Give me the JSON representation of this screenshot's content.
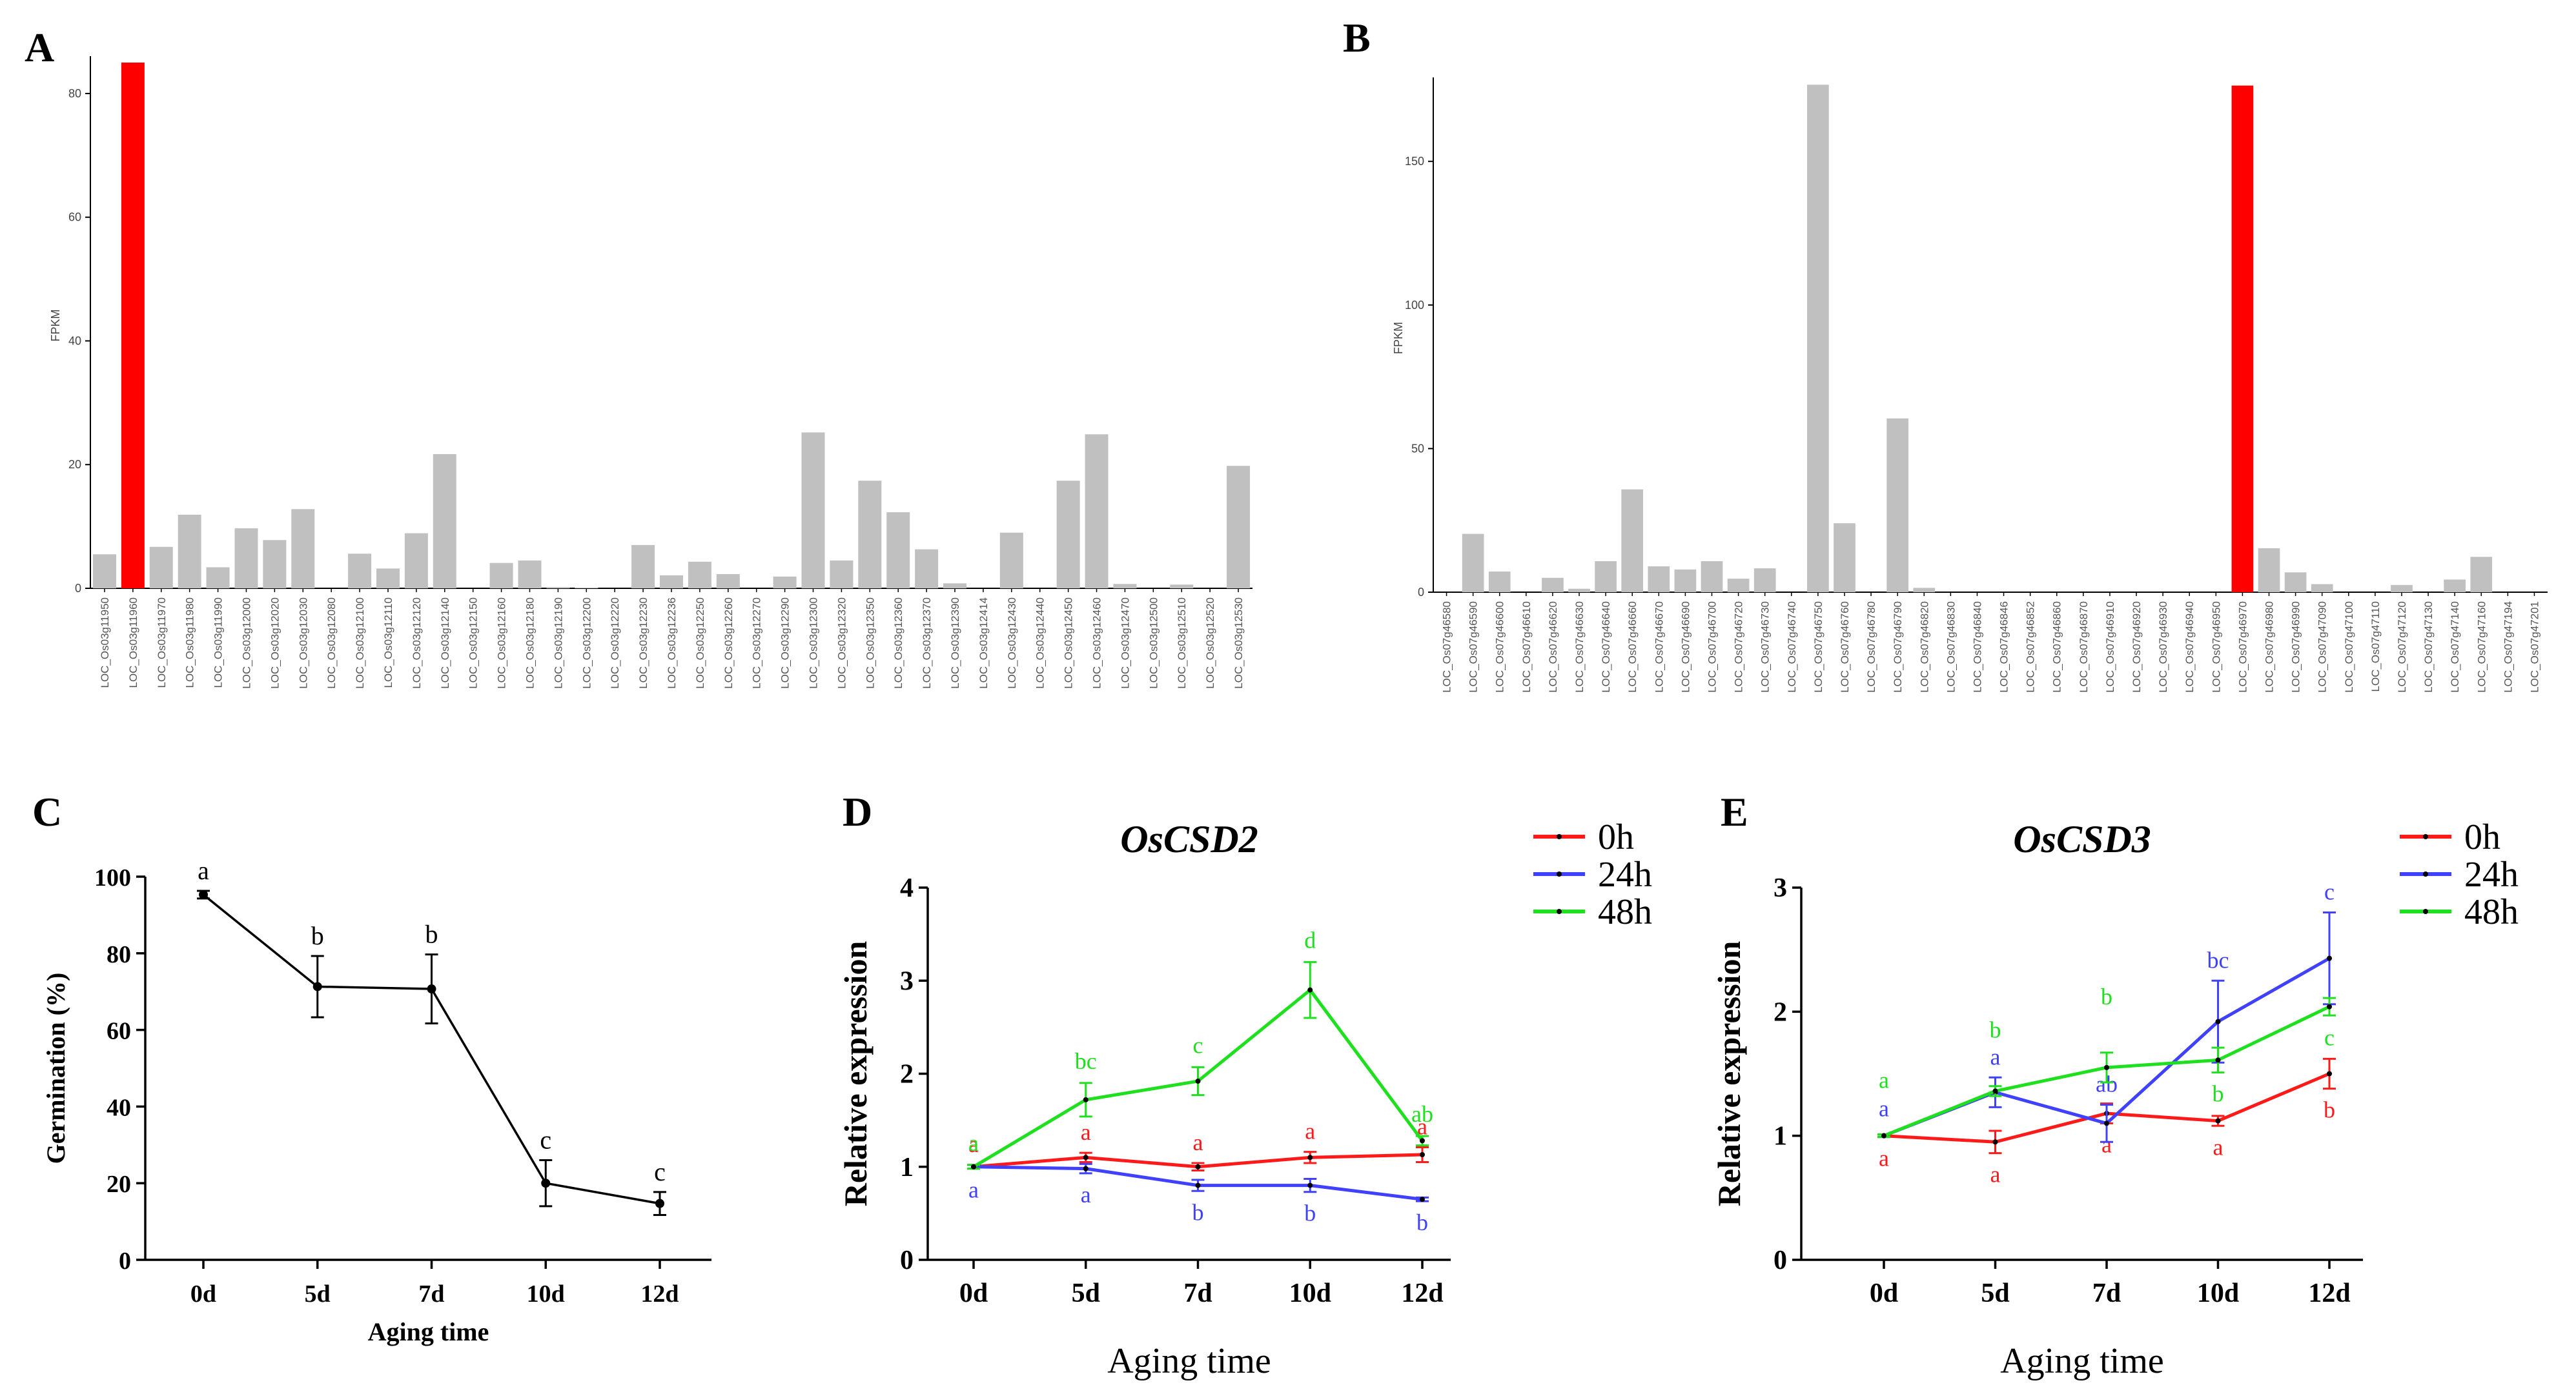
{
  "colors": {
    "highlight": "#ff0000",
    "bar": "#c0c0c0",
    "s0h": "#ff1a1a",
    "s24h": "#4040ff",
    "s48h": "#1ee01e",
    "axis": "#000000"
  },
  "chart_data": [
    {
      "panel": "A",
      "type": "bar",
      "ylabel": "FPKM",
      "ylim": [
        0,
        85
      ],
      "yticks": [
        0,
        20,
        40,
        60,
        80
      ],
      "highlight_index": 1,
      "categories": [
        "LOC_Os03g11950",
        "LOC_Os03g11960",
        "LOC_Os03g11970",
        "LOC_Os03g11980",
        "LOC_Os03g11990",
        "LOC_Os03g12000",
        "LOC_Os03g12020",
        "LOC_Os03g12030",
        "LOC_Os03g12080",
        "LOC_Os03g12100",
        "LOC_Os03g12110",
        "LOC_Os03g12120",
        "LOC_Os03g12140",
        "LOC_Os03g12150",
        "LOC_Os03g12160",
        "LOC_Os03g12180",
        "LOC_Os03g12190",
        "LOC_Os03g12200",
        "LOC_Os03g12220",
        "LOC_Os03g12230",
        "LOC_Os03g12236",
        "LOC_Os03g12250",
        "LOC_Os03g12260",
        "LOC_Os03g12270",
        "LOC_Os03g12290",
        "LOC_Os03g12300",
        "LOC_Os03g12320",
        "LOC_Os03g12350",
        "LOC_Os03g12360",
        "LOC_Os03g12370",
        "LOC_Os03g12390",
        "LOC_Os03g12414",
        "LOC_Os03g12430",
        "LOC_Os03g12440",
        "LOC_Os03g12450",
        "LOC_Os03g12460",
        "LOC_Os03g12470",
        "LOC_Os03g12500",
        "LOC_Os03g12510",
        "LOC_Os03g12520",
        "LOC_Os03g12530"
      ],
      "values": [
        5.5,
        85,
        6.7,
        11.9,
        3.4,
        9.7,
        7.8,
        12.8,
        0,
        5.6,
        3.2,
        8.9,
        21.7,
        0,
        4.1,
        4.5,
        0.2,
        0.1,
        0,
        7.0,
        2.1,
        4.3,
        2.3,
        0,
        1.9,
        25.2,
        4.5,
        17.4,
        12.3,
        6.3,
        0.8,
        0,
        9.0,
        0,
        17.4,
        24.9,
        0.7,
        0,
        0.6,
        0,
        19.8
      ]
    },
    {
      "panel": "B",
      "type": "bar",
      "ylabel": "FPKM",
      "ylim": [
        0,
        177
      ],
      "yticks": [
        0,
        50,
        100,
        150
      ],
      "highlight_index": 30,
      "categories": [
        "LOC_Os07g46580",
        "LOC_Os07g46590",
        "LOC_Os07g46600",
        "LOC_Os07g46610",
        "LOC_Os07g46620",
        "LOC_Os07g46630",
        "LOC_Os07g46640",
        "LOC_Os07g46660",
        "LOC_Os07g46670",
        "LOC_Os07g46690",
        "LOC_Os07g46700",
        "LOC_Os07g46720",
        "LOC_Os07g46730",
        "LOC_Os07g46740",
        "LOC_Os07g46750",
        "LOC_Os07g46760",
        "LOC_Os07g46780",
        "LOC_Os07g46790",
        "LOC_Os07g46820",
        "LOC_Os07g46830",
        "LOC_Os07g46840",
        "LOC_Os07g46846",
        "LOC_Os07g46852",
        "LOC_Os07g46860",
        "LOC_Os07g46870",
        "LOC_Os07g46910",
        "LOC_Os07g46920",
        "LOC_Os07g46930",
        "LOC_Os07g46940",
        "LOC_Os07g46950",
        "LOC_Os07g46970",
        "LOC_Os07g46980",
        "LOC_Os07g46990",
        "LOC_Os07g47090",
        "LOC_Os07g47100",
        "LOC_Os07g47110",
        "LOC_Os07g47120",
        "LOC_Os07g47130",
        "LOC_Os07g47140",
        "LOC_Os07g47160",
        "LOC_Os07g47194",
        "LOC_Os07g47201"
      ],
      "values": [
        0,
        20.3,
        7.2,
        0,
        5.0,
        1.2,
        10.8,
        35.8,
        9.0,
        7.9,
        10.8,
        4.7,
        8.3,
        0,
        176.7,
        24.0,
        0,
        60.5,
        1.5,
        0,
        0,
        0,
        0,
        0,
        0,
        0,
        0,
        0,
        0,
        0,
        176.4,
        15.3,
        6.9,
        2.8,
        0,
        0,
        2.5,
        0,
        4.4,
        12.3,
        0,
        0
      ]
    },
    {
      "panel": "C",
      "type": "line",
      "xlabel": "Aging time",
      "ylabel": "Germination (%)",
      "categories": [
        "0d",
        "5d",
        "7d",
        "10d",
        "12d"
      ],
      "ylim": [
        0,
        100
      ],
      "yticks": [
        0,
        20,
        40,
        60,
        80,
        100
      ],
      "series": [
        {
          "name": "",
          "values": [
            95.3,
            71.3,
            70.7,
            20.0,
            14.7
          ],
          "errors": [
            1.0,
            8.0,
            9.0,
            6.0,
            3.0
          ],
          "letters": [
            "a",
            "b",
            "b",
            "c",
            "c"
          ]
        }
      ]
    },
    {
      "panel": "D",
      "type": "line",
      "title": "OsCSD2",
      "xlabel": "Aging time",
      "ylabel": "Relative expression",
      "categories": [
        "0d",
        "5d",
        "7d",
        "10d",
        "12d"
      ],
      "ylim": [
        0,
        4
      ],
      "yticks": [
        0,
        1,
        2,
        3,
        4
      ],
      "legend": [
        "0h",
        "24h",
        "48h"
      ],
      "series": [
        {
          "name": "0h",
          "color": "#ff1a1a",
          "values": [
            1.0,
            1.1,
            1.0,
            1.1,
            1.13
          ],
          "errors": [
            0.02,
            0.05,
            0.04,
            0.06,
            0.08
          ],
          "letters": [
            "a",
            "a",
            "a",
            "a",
            "a"
          ]
        },
        {
          "name": "24h",
          "color": "#4040ff",
          "values": [
            1.0,
            0.98,
            0.8,
            0.8,
            0.65
          ],
          "errors": [
            0.02,
            0.05,
            0.06,
            0.07,
            0.02
          ],
          "letters": [
            "a",
            "a",
            "b",
            "b",
            "b"
          ]
        },
        {
          "name": "48h",
          "color": "#1ee01e",
          "values": [
            1.0,
            1.72,
            1.92,
            2.9,
            1.28
          ],
          "errors": [
            0.02,
            0.18,
            0.15,
            0.3,
            0.05
          ],
          "letters": [
            "a",
            "bc",
            "c",
            "d",
            "ab"
          ]
        }
      ]
    },
    {
      "panel": "E",
      "type": "line",
      "title": "OsCSD3",
      "xlabel": "Aging time",
      "ylabel": "Relative expression",
      "categories": [
        "0d",
        "5d",
        "7d",
        "10d",
        "12d"
      ],
      "ylim": [
        0,
        3
      ],
      "yticks": [
        0,
        1,
        2,
        3
      ],
      "legend": [
        "0h",
        "24h",
        "48h"
      ],
      "series": [
        {
          "name": "0h",
          "color": "#ff1a1a",
          "values": [
            1.0,
            0.95,
            1.18,
            1.12,
            1.5
          ],
          "errors": [
            0.01,
            0.09,
            0.08,
            0.04,
            0.12
          ],
          "letters": [
            "a",
            "a",
            "a",
            "a",
            "b"
          ]
        },
        {
          "name": "24h",
          "color": "#4040ff",
          "values": [
            1.0,
            1.35,
            1.1,
            1.92,
            2.43
          ],
          "errors": [
            0.01,
            0.12,
            0.15,
            0.33,
            0.37
          ],
          "letters": [
            "a",
            "a",
            "ab",
            "bc",
            "c"
          ]
        },
        {
          "name": "48h",
          "color": "#1ee01e",
          "values": [
            1.0,
            1.36,
            1.55,
            1.61,
            2.04
          ],
          "errors": [
            0.01,
            0.04,
            0.12,
            0.1,
            0.07
          ],
          "letters": [
            "a",
            "b",
            "b",
            "b",
            "c"
          ]
        }
      ]
    }
  ],
  "panel_labels": [
    "A",
    "B",
    "C",
    "D",
    "E"
  ]
}
